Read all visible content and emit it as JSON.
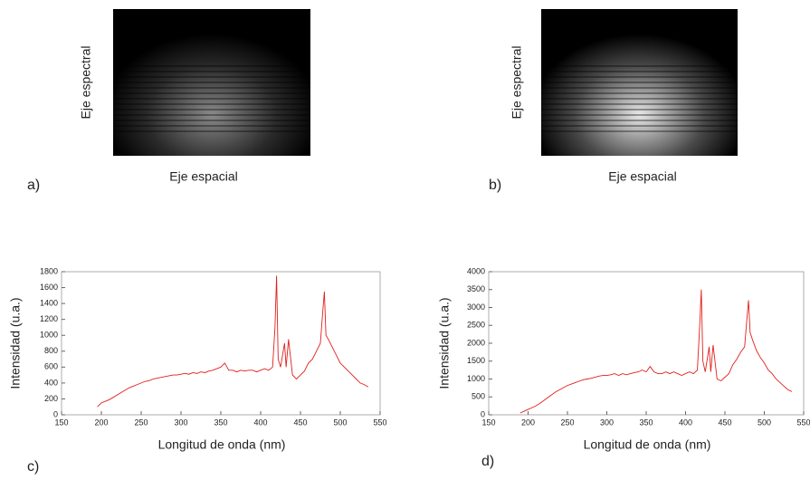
{
  "images": [
    {
      "label": "a)",
      "x_label": "Eje espacial",
      "y_label": "Eje espectral"
    },
    {
      "label": "b)",
      "x_label": "Eje espacial",
      "y_label": "Eje espectral"
    }
  ],
  "chart_data": [
    {
      "type": "line",
      "panel_label": "c)",
      "x_label": "Longitud de onda (nm)",
      "y_label": "Intensidad (u.a.)",
      "xlim": [
        150,
        550
      ],
      "xticks": [
        150,
        200,
        250,
        300,
        350,
        400,
        450,
        500,
        550
      ],
      "ylim": [
        0,
        1800
      ],
      "yticks": [
        0,
        200,
        400,
        600,
        800,
        1000,
        1200,
        1400,
        1600,
        1800
      ],
      "grid": false,
      "x": [
        195,
        200,
        205,
        210,
        215,
        220,
        225,
        230,
        235,
        240,
        245,
        250,
        255,
        260,
        265,
        270,
        275,
        280,
        285,
        290,
        295,
        300,
        305,
        310,
        315,
        320,
        325,
        330,
        335,
        340,
        345,
        350,
        355,
        360,
        365,
        370,
        375,
        380,
        385,
        390,
        395,
        400,
        405,
        410,
        415,
        418,
        420,
        422,
        425,
        430,
        432,
        435,
        440,
        445,
        450,
        455,
        460,
        465,
        470,
        475,
        478,
        480,
        482,
        485,
        490,
        495,
        500,
        505,
        510,
        515,
        520,
        525,
        530,
        535
      ],
      "series": [
        {
          "color": "#e0201c",
          "values": [
            100,
            150,
            170,
            190,
            220,
            250,
            280,
            310,
            340,
            360,
            380,
            400,
            420,
            430,
            450,
            460,
            470,
            480,
            490,
            500,
            500,
            510,
            520,
            510,
            530,
            520,
            540,
            530,
            550,
            560,
            580,
            600,
            650,
            560,
            560,
            540,
            560,
            550,
            560,
            560,
            540,
            560,
            580,
            560,
            600,
            1100,
            1750,
            700,
            600,
            900,
            600,
            950,
            500,
            450,
            500,
            550,
            650,
            700,
            800,
            900,
            1300,
            1550,
            1000,
            950,
            850,
            750,
            650,
            600,
            550,
            500,
            450,
            400,
            380,
            350
          ]
        }
      ]
    },
    {
      "type": "line",
      "panel_label": "d)",
      "x_label": "Longitud de onda (nm)",
      "y_label": "Intensidad (u.a.)",
      "xlim": [
        150,
        550
      ],
      "xticks": [
        150,
        200,
        250,
        300,
        350,
        400,
        450,
        500,
        550
      ],
      "ylim": [
        0,
        4000
      ],
      "yticks": [
        0,
        500,
        1000,
        1500,
        2000,
        2500,
        3000,
        3500,
        4000
      ],
      "grid": false,
      "x": [
        190,
        195,
        200,
        205,
        210,
        215,
        220,
        225,
        230,
        235,
        240,
        245,
        250,
        255,
        260,
        265,
        270,
        275,
        280,
        285,
        290,
        295,
        300,
        305,
        310,
        315,
        320,
        325,
        330,
        335,
        340,
        345,
        350,
        355,
        360,
        365,
        370,
        375,
        380,
        385,
        390,
        395,
        400,
        405,
        410,
        415,
        418,
        420,
        422,
        425,
        430,
        432,
        435,
        440,
        445,
        450,
        455,
        460,
        465,
        470,
        475,
        478,
        480,
        482,
        485,
        490,
        495,
        500,
        505,
        510,
        515,
        520,
        525,
        530,
        535
      ],
      "series": [
        {
          "color": "#e0201c",
          "values": [
            50,
            100,
            150,
            200,
            250,
            320,
            400,
            480,
            560,
            640,
            700,
            760,
            820,
            860,
            900,
            940,
            980,
            1000,
            1020,
            1050,
            1080,
            1100,
            1100,
            1120,
            1150,
            1100,
            1150,
            1120,
            1150,
            1180,
            1200,
            1250,
            1200,
            1350,
            1200,
            1150,
            1150,
            1200,
            1150,
            1200,
            1150,
            1100,
            1150,
            1200,
            1150,
            1250,
            2500,
            3500,
            1500,
            1200,
            1900,
            1200,
            1950,
            1000,
            950,
            1050,
            1150,
            1400,
            1550,
            1750,
            1900,
            2700,
            3200,
            2300,
            2100,
            1800,
            1600,
            1450,
            1250,
            1150,
            1000,
            900,
            800,
            700,
            650
          ]
        }
      ]
    }
  ]
}
